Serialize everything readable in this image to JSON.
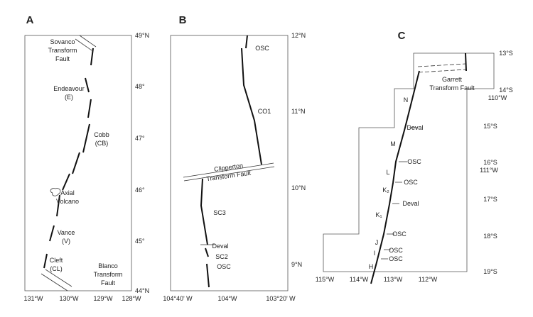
{
  "panels": [
    {
      "label": "A",
      "lat_ticks": [
        "49°N",
        "48°",
        "47°",
        "46°",
        "45°",
        "44°N"
      ],
      "lon_ticks": [
        "131°W",
        "130°W",
        "129°W",
        "128°W"
      ],
      "features": [
        {
          "lines": [
            "Sovanco",
            "Transform",
            "Fault"
          ]
        },
        {
          "lines": [
            "Endeavour",
            "(E)"
          ]
        },
        {
          "lines": [
            "Cobb",
            "(CB)"
          ]
        },
        {
          "lines": [
            "Axial",
            "Volcano"
          ]
        },
        {
          "lines": [
            "Vance",
            "(V)"
          ]
        },
        {
          "lines": [
            "Cleft",
            "(CL)"
          ]
        },
        {
          "lines": [
            "Blanco",
            "Transform",
            "Fault"
          ]
        }
      ]
    },
    {
      "label": "B",
      "lat_ticks": [
        "12°N",
        "11°N",
        "10°N",
        "9°N"
      ],
      "lon_ticks": [
        "104°40' W",
        "104°W",
        "103°20' W"
      ],
      "features": [
        {
          "lines": [
            "OSC"
          ]
        },
        {
          "lines": [
            "CO1"
          ]
        },
        {
          "lines": [
            "Clipperton",
            "Transform Fault"
          ]
        },
        {
          "lines": [
            "SC3"
          ]
        },
        {
          "lines": [
            "Deval"
          ]
        },
        {
          "lines": [
            "SC2"
          ]
        },
        {
          "lines": [
            "OSC"
          ]
        }
      ]
    },
    {
      "label": "C",
      "lat_ticks": [
        "13°S",
        "14°S",
        "15°S",
        "16°S",
        "17°S",
        "18°S",
        "19°S"
      ],
      "inner_lon_ticks": [
        "110°W",
        "111°W"
      ],
      "lon_ticks": [
        "115°W",
        "114°W",
        "113°W",
        "112°W"
      ],
      "features": [
        {
          "lines": [
            "Garrett",
            "Transform Fault"
          ]
        },
        {
          "lines": [
            "N"
          ]
        },
        {
          "lines": [
            "Deval"
          ]
        },
        {
          "lines": [
            "M"
          ]
        },
        {
          "lines": [
            "OSC"
          ]
        },
        {
          "lines": [
            "L"
          ]
        },
        {
          "lines": [
            "K₂"
          ]
        },
        {
          "lines": [
            "OSC"
          ]
        },
        {
          "lines": [
            "Deval"
          ]
        },
        {
          "lines": [
            "K₁"
          ]
        },
        {
          "lines": [
            "OSC"
          ]
        },
        {
          "lines": [
            "J"
          ]
        },
        {
          "lines": [
            "I"
          ]
        },
        {
          "lines": [
            "OSC"
          ]
        },
        {
          "lines": [
            "H"
          ]
        },
        {
          "lines": [
            "OSC"
          ]
        }
      ]
    }
  ]
}
